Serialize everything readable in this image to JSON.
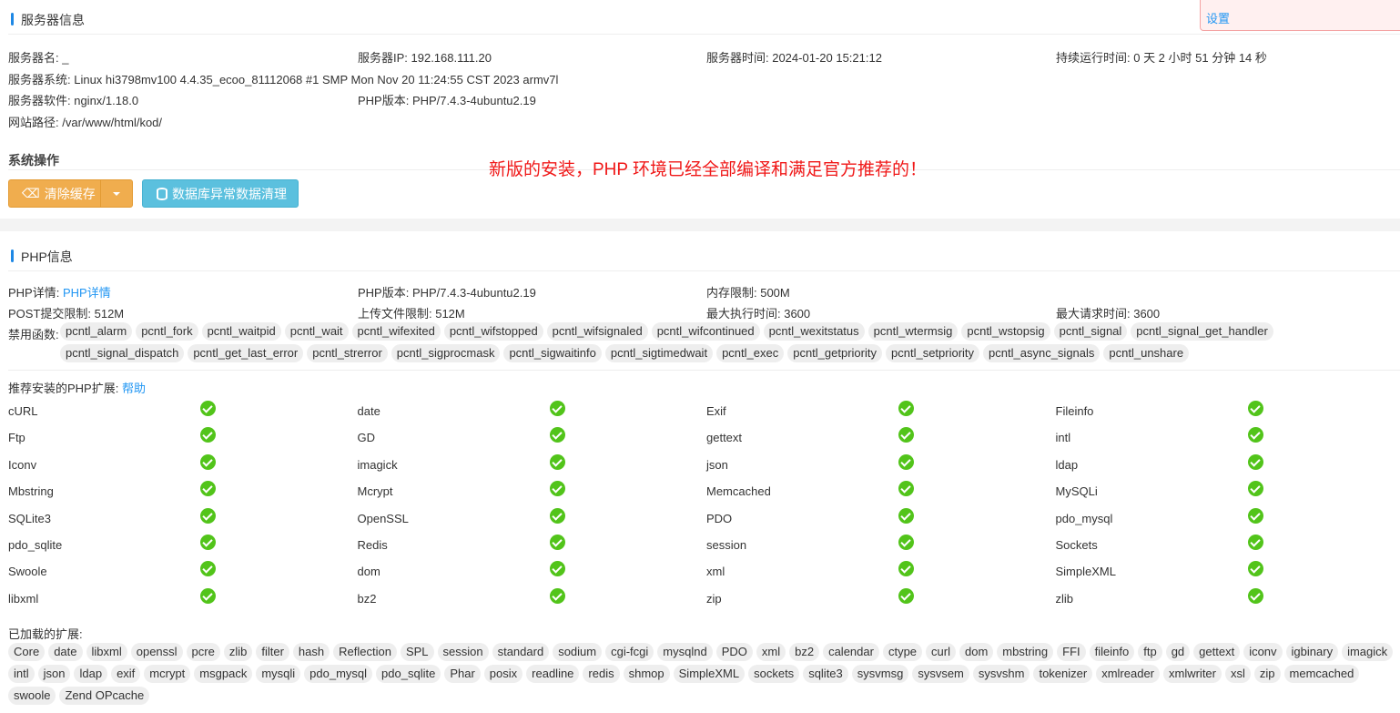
{
  "notice": {
    "link": "设置"
  },
  "server": {
    "title": "服务器信息",
    "name": "服务器名: _",
    "ip": "服务器IP: 192.168.111.20",
    "time": "服务器时间: 2024-01-20 15:21:12",
    "uptime": "持续运行时间: 0 天 2 小时 51 分钟 14 秒",
    "system": "服务器系统: Linux hi3798mv100 4.4.35_ecoo_81112068 #1 SMP Mon Nov 20 11:24:55 CST 2023 armv7l",
    "software": "服务器软件: nginx/1.18.0",
    "php_version": "PHP版本: PHP/7.4.3-4ubuntu2.19",
    "path": "网站路径: /var/www/html/kod/"
  },
  "ops": {
    "title": "系统操作",
    "clear_cache": "清除缓存",
    "db_clean": "数据库异常数据清理"
  },
  "annotation": "新版的安装，PHP 环境已经全部编译和满足官方推荐的！",
  "php": {
    "title": "PHP信息",
    "detail_label": "PHP详情:",
    "detail_link": "PHP详情",
    "version": "PHP版本: PHP/7.4.3-4ubuntu2.19",
    "memory": "内存限制: 500M",
    "post": "POST提交限制: 512M",
    "upload": "上传文件限制: 512M",
    "exec_time": "最大执行时间: 3600",
    "req_time": "最大请求时间: 3600",
    "disabled_label": "禁用函数:",
    "disabled": [
      "pcntl_alarm",
      "pcntl_fork",
      "pcntl_waitpid",
      "pcntl_wait",
      "pcntl_wifexited",
      "pcntl_wifstopped",
      "pcntl_wifsignaled",
      "pcntl_wifcontinued",
      "pcntl_wexitstatus",
      "pcntl_wtermsig",
      "pcntl_wstopsig",
      "pcntl_signal",
      "pcntl_signal_get_handler",
      "pcntl_signal_dispatch",
      "pcntl_get_last_error",
      "pcntl_strerror",
      "pcntl_sigprocmask",
      "pcntl_sigwaitinfo",
      "pcntl_sigtimedwait",
      "pcntl_exec",
      "pcntl_getpriority",
      "pcntl_setpriority",
      "pcntl_async_signals",
      "pcntl_unshare"
    ],
    "recommended_label": "推荐安装的PHP扩展:",
    "help": "帮助",
    "recommended": [
      "cURL",
      "date",
      "Exif",
      "Fileinfo",
      "Ftp",
      "GD",
      "gettext",
      "intl",
      "Iconv",
      "imagick",
      "json",
      "ldap",
      "Mbstring",
      "Mcrypt",
      "Memcached",
      "MySQLi",
      "SQLite3",
      "OpenSSL",
      "PDO",
      "pdo_mysql",
      "pdo_sqlite",
      "Redis",
      "session",
      "Sockets",
      "Swoole",
      "dom",
      "xml",
      "SimpleXML",
      "libxml",
      "bz2",
      "zip",
      "zlib"
    ],
    "loaded_label": "已加载的扩展:",
    "loaded": [
      "Core",
      "date",
      "libxml",
      "openssl",
      "pcre",
      "zlib",
      "filter",
      "hash",
      "Reflection",
      "SPL",
      "session",
      "standard",
      "sodium",
      "cgi-fcgi",
      "mysqlnd",
      "PDO",
      "xml",
      "bz2",
      "calendar",
      "ctype",
      "curl",
      "dom",
      "mbstring",
      "FFI",
      "fileinfo",
      "ftp",
      "gd",
      "gettext",
      "iconv",
      "igbinary",
      "imagick",
      "intl",
      "json",
      "ldap",
      "exif",
      "mcrypt",
      "msgpack",
      "mysqli",
      "pdo_mysql",
      "pdo_sqlite",
      "Phar",
      "posix",
      "readline",
      "redis",
      "shmop",
      "SimpleXML",
      "sockets",
      "sqlite3",
      "sysvmsg",
      "sysvsem",
      "sysvshm",
      "tokenizer",
      "xmlreader",
      "xmlwriter",
      "xsl",
      "zip",
      "memcached",
      "swoole",
      "Zend OPcache"
    ]
  },
  "colors": {
    "orange": "#f0ad4e",
    "cyan": "#5bc0de",
    "check": "#52c41a",
    "link": "#2196f3",
    "annotation": "#f01818"
  }
}
